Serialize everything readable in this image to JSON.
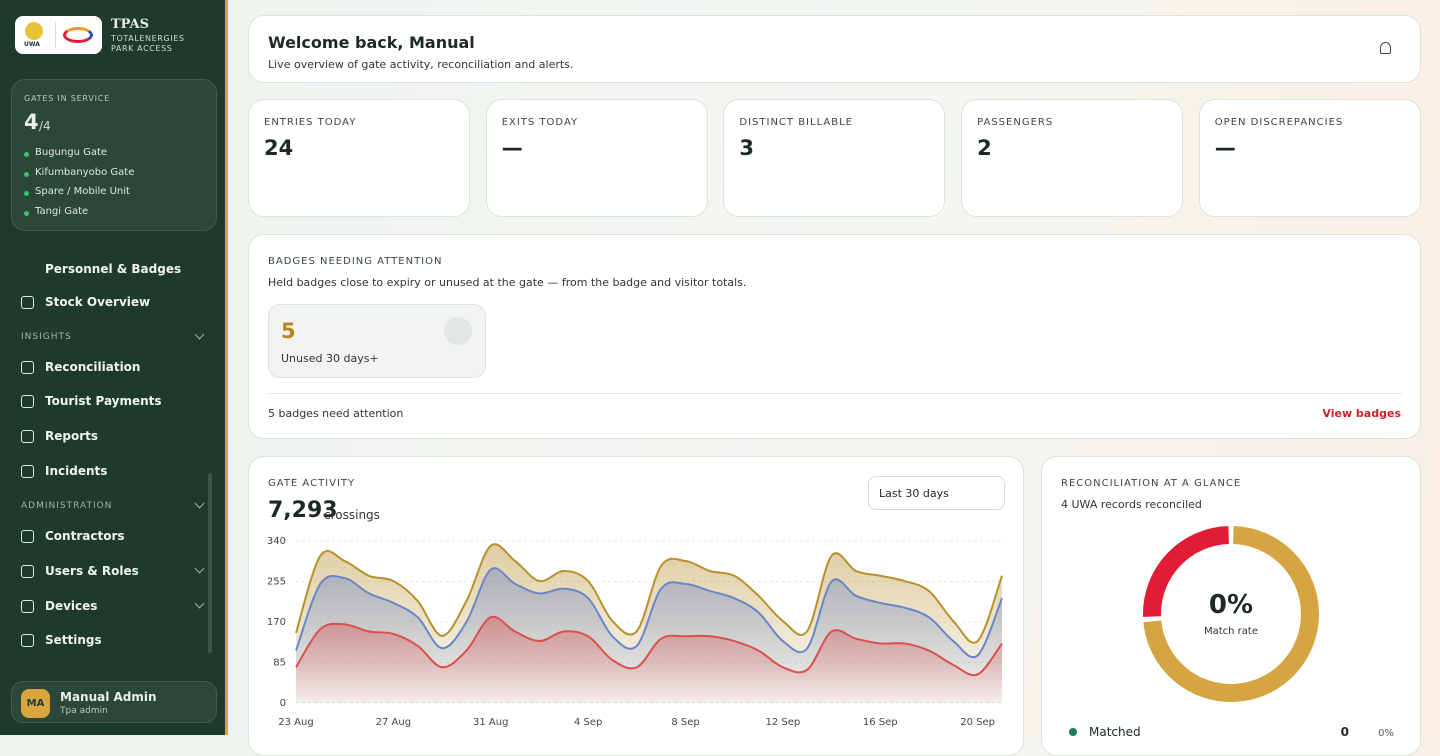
{
  "sidebar": {
    "brand": {
      "logo_text": "UWA",
      "title": "TPAS",
      "subtitle": "TOTALENERGIES\nPARK ACCESS"
    },
    "gates": {
      "heading": "GATES IN SERVICE",
      "in_service": 4,
      "of": "/4",
      "list": [
        "Bugungu Gate",
        "Kifumbanyobo Gate",
        "Spare / Mobile Unit",
        "Tangi Gate"
      ]
    },
    "nav": [
      {
        "label": "Personnel & Badges"
      },
      {
        "label": "Stock Overview"
      },
      {
        "section": "INSIGHTS"
      },
      {
        "label": "Reconciliation"
      },
      {
        "label": "Tourist Payments"
      },
      {
        "label": "Reports"
      },
      {
        "label": "Incidents"
      },
      {
        "section": "ADMINISTRATION"
      },
      {
        "label": "Contractors"
      },
      {
        "label": "Users & Roles"
      },
      {
        "label": "Devices"
      },
      {
        "label": "Settings"
      }
    ],
    "user": {
      "initials": "MA",
      "name": "Manual Admin",
      "role": "Tpa admin"
    }
  },
  "header": {
    "title": "Welcome back, Manual",
    "subtitle": "Live overview of gate activity, reconciliation and alerts."
  },
  "kpis": [
    {
      "label": "ENTRIES TODAY",
      "value": 24
    },
    {
      "label": "EXITS TODAY",
      "value": "—"
    },
    {
      "label": "DISTINCT BILLABLE",
      "value": 3
    },
    {
      "label": "PASSENGERS",
      "value": 2
    },
    {
      "label": "OPEN DISCREPANCIES",
      "value": "—"
    }
  ],
  "badges": {
    "title": "BADGES NEEDING ATTENTION",
    "description": "Held badges close to expiry or unused at the gate — from the badge and visitor totals.",
    "tile": {
      "value": 5,
      "label": "Unused 30 days+"
    },
    "footer": "5 badges need attention",
    "link": "View badges"
  },
  "gate_activity": {
    "title": "GATE ACTIVITY",
    "total": "7,293",
    "unit": "crossings",
    "range_select": "Last 30 days",
    "chart_data": {
      "type": "area",
      "categories": [
        "23 Aug",
        null,
        null,
        null,
        "27 Aug",
        null,
        null,
        null,
        "31 Aug",
        null,
        null,
        null,
        "4 Sep",
        null,
        null,
        null,
        "8 Sep",
        null,
        null,
        null,
        "12 Sep",
        null,
        null,
        null,
        "16 Sep",
        null,
        null,
        null,
        "20 Sep",
        null
      ],
      "ylim": [
        0,
        340
      ],
      "yticks": [
        0,
        85,
        170,
        255,
        340
      ],
      "grid": true,
      "series": [
        {
          "color": "#b8902e",
          "values": [
            147,
            309,
            298,
            267,
            256,
            214,
            141,
            214,
            330,
            298,
            256,
            277,
            256,
            172,
            151,
            288,
            298,
            277,
            267,
            225,
            172,
            151,
            309,
            277,
            267,
            256,
            235,
            172,
            130,
            267
          ]
        },
        {
          "color": "#6a85c8",
          "values": [
            110,
            250,
            262,
            230,
            210,
            180,
            115,
            170,
            280,
            250,
            230,
            240,
            220,
            140,
            120,
            240,
            250,
            235,
            220,
            190,
            130,
            115,
            255,
            225,
            210,
            200,
            180,
            130,
            100,
            220
          ]
        },
        {
          "color": "#d9514e",
          "values": [
            75,
            155,
            165,
            150,
            145,
            120,
            75,
            110,
            180,
            150,
            130,
            150,
            140,
            90,
            75,
            135,
            140,
            140,
            130,
            110,
            75,
            70,
            150,
            135,
            125,
            125,
            110,
            80,
            60,
            125
          ]
        }
      ]
    }
  },
  "reconciliation": {
    "title": "RECONCILIATION AT A GLANCE",
    "subtitle": "4 UWA records reconciled",
    "chart_data": {
      "type": "donut",
      "center_value": "0%",
      "center_label": "Match rate",
      "segments": [
        {
          "color": "#d6a440",
          "value": 74
        },
        {
          "color": "#e11d36",
          "value": 26
        }
      ]
    },
    "legend": [
      {
        "name": "Matched",
        "count": 0,
        "share": "0%",
        "color": "#1a7f4f"
      }
    ]
  }
}
